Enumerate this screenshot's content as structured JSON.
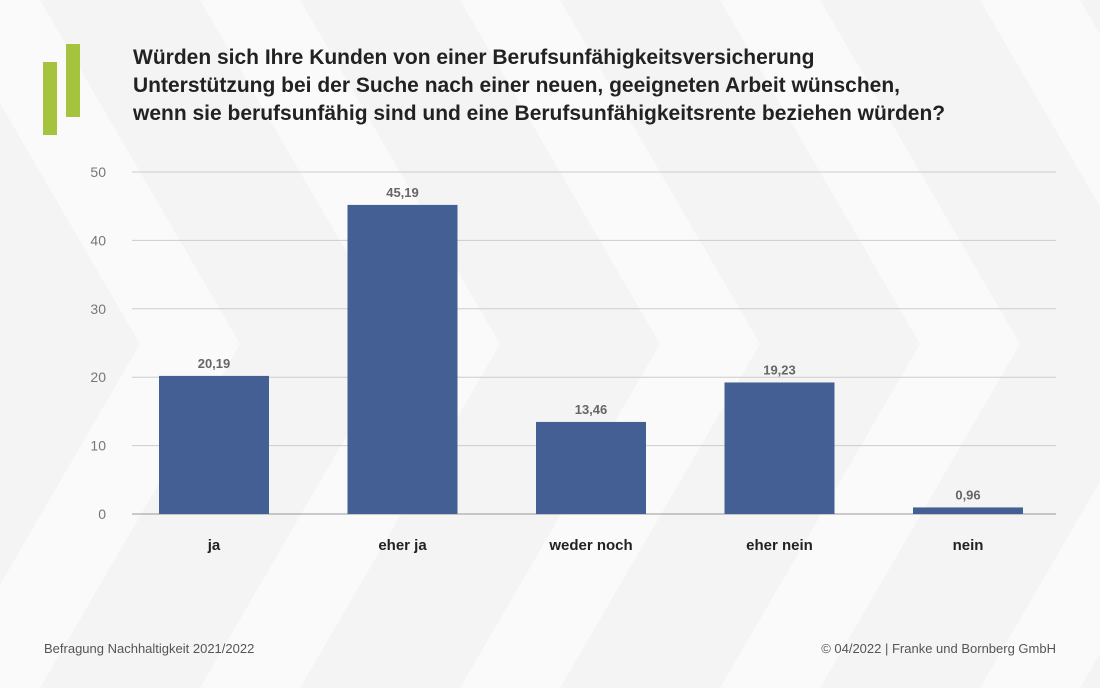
{
  "title_lines": [
    "Würden sich Ihre Kunden von einer Berufsunfähigkeitsversicherung",
    "Unterstützung bei der Suche nach einer neuen, geeigneten Arbeit wünschen,",
    "wenn sie berufsunfähig sind und eine Berufsunfähigkeitsrente beziehen würden?"
  ],
  "footer": {
    "source": "Befragung Nachhaltigkeit 2021/2022",
    "copyright": "© 04/2022 | Franke und Bornberg GmbH"
  },
  "colors": {
    "bar": "#445f93",
    "logo": "#a6c33d",
    "grid": "#cccccc"
  },
  "chart_data": {
    "type": "bar",
    "categories": [
      "ja",
      "eher ja",
      "weder noch",
      "eher nein",
      "nein"
    ],
    "values": [
      20.19,
      45.19,
      13.46,
      19.23,
      0.96
    ],
    "value_labels": [
      "20,19",
      "45,19",
      "13,46",
      "19,23",
      "0,96"
    ],
    "y_ticks": [
      0,
      10,
      20,
      30,
      40,
      50
    ],
    "ylim": [
      0,
      50
    ],
    "grid": true
  }
}
